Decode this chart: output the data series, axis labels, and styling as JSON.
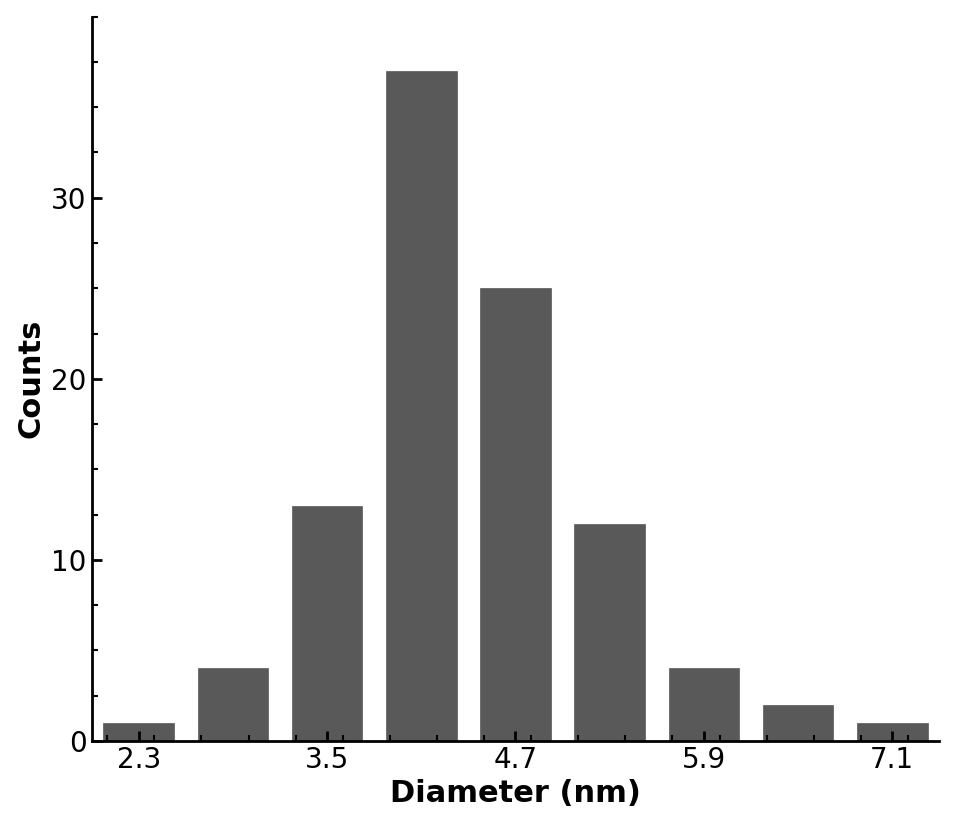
{
  "bar_centers": [
    2.3,
    2.9,
    3.5,
    4.1,
    4.7,
    5.3,
    5.9,
    6.5,
    7.1
  ],
  "bar_heights": [
    1,
    4,
    13,
    37,
    25,
    12,
    4,
    2,
    1
  ],
  "bar_width": 0.45,
  "bar_color": "#595959",
  "bar_edgecolor": "#595959",
  "xlabel": "Diameter (nm)",
  "ylabel": "Counts",
  "xticks": [
    2.3,
    3.5,
    4.7,
    5.9,
    7.1
  ],
  "yticks": [
    0,
    10,
    20,
    30
  ],
  "xlim": [
    2.0,
    7.4
  ],
  "ylim": [
    0,
    40
  ],
  "xlabel_fontsize": 22,
  "ylabel_fontsize": 22,
  "tick_fontsize": 20,
  "background_color": "#ffffff",
  "minor_ytick_interval": 2.5,
  "figsize": [
    9.56,
    8.25
  ],
  "dpi": 100
}
